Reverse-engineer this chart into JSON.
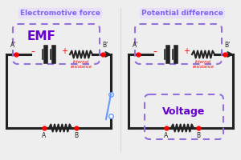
{
  "bg_color": "#eeeeee",
  "title_left": "Electromotive force",
  "title_right": "Potential difference",
  "emf_label": "EMF",
  "voltage_label": "Voltage",
  "title_color": "#7B68EE",
  "box_color": "#9370DB",
  "emf_color": "#6600CC",
  "circuit_color": "#222222",
  "dot_color": "#FF0000",
  "minus_color": "#FF0000",
  "plus_color": "#FF0000",
  "switch_color": "#6699FF",
  "wire_lw": 2.2
}
